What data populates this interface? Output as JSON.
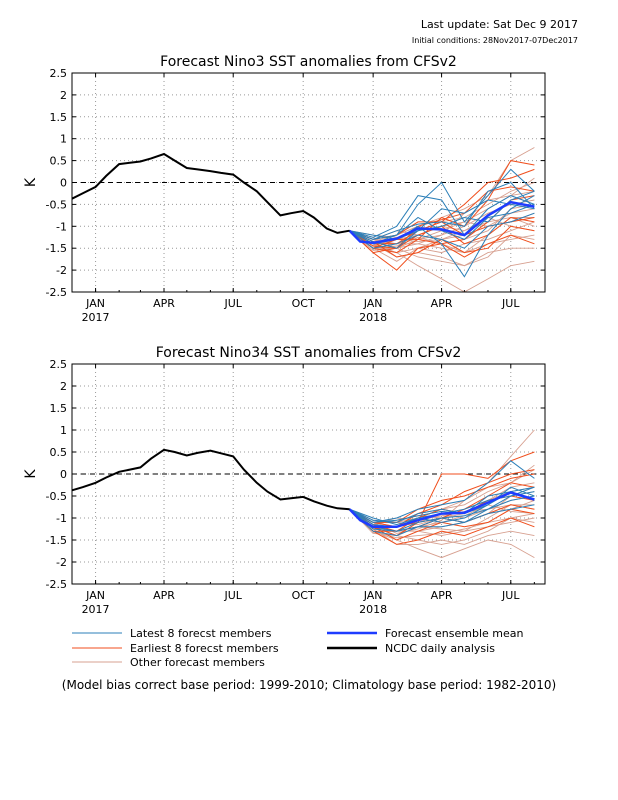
{
  "header": {
    "last_update": "Last update: Sat Dec 9 2017",
    "initial_conditions": "Initial conditions: 28Nov2017-07Dec2017"
  },
  "footnote": "(Model bias correct base period: 1999-2010; Climatology base period: 1982-2010)",
  "colors": {
    "latest": "#2b7fb8",
    "earliest": "#f04e1c",
    "other": "#d7a090",
    "mean": "#1e3cff",
    "observed": "#000000",
    "grid": "#999999"
  },
  "legend": [
    {
      "label": "Latest 8 forecst members",
      "color": "#2b7fb8",
      "width": 1
    },
    {
      "label": "Earliest 8 forecst members",
      "color": "#f04e1c",
      "width": 1
    },
    {
      "label": "Other forecast members",
      "color": "#d7a090",
      "width": 1
    },
    {
      "label": "Forecast ensemble mean",
      "color": "#1e3cff",
      "width": 2.5
    },
    {
      "label": "NCDC daily analysis",
      "color": "#000000",
      "width": 2.5
    }
  ],
  "chart_data": [
    {
      "type": "line",
      "title": "Forecast Nino3 SST anomalies from CFSv2",
      "ylabel": "K",
      "ylim": [
        -2.5,
        2.5
      ],
      "yticks": [
        "2.5",
        "2",
        "1.5",
        "1",
        "0.5",
        "0",
        "-0.5",
        "-1",
        "-1.5",
        "-2",
        "-2.5"
      ],
      "xticks": [
        {
          "month": "JAN",
          "year": "2017"
        },
        {
          "month": "APR",
          "year": ""
        },
        {
          "month": "JUL",
          "year": ""
        },
        {
          "month": "OCT",
          "year": ""
        },
        {
          "month": "JAN",
          "year": "2018"
        },
        {
          "month": "APR",
          "year": ""
        },
        {
          "month": "JUL",
          "year": ""
        }
      ],
      "grid": true,
      "observed": {
        "x": [
          "2016-12-01",
          "2016-12-15",
          "2017-01-01",
          "2017-01-15",
          "2017-02-01",
          "2017-02-15",
          "2017-03-01",
          "2017-03-15",
          "2017-04-01",
          "2017-04-15",
          "2017-05-01",
          "2017-05-15",
          "2017-06-01",
          "2017-06-15",
          "2017-07-01",
          "2017-07-15",
          "2017-08-01",
          "2017-08-15",
          "2017-09-01",
          "2017-09-15",
          "2017-10-01",
          "2017-10-15",
          "2017-11-01",
          "2017-11-15",
          "2017-12-01"
        ],
        "y": [
          -0.37,
          -0.25,
          -0.1,
          0.15,
          0.42,
          0.45,
          0.48,
          0.55,
          0.65,
          0.5,
          0.33,
          0.3,
          0.26,
          0.22,
          0.18,
          0.0,
          -0.2,
          -0.45,
          -0.75,
          -0.7,
          -0.65,
          -0.8,
          -1.05,
          -1.15,
          -1.1
        ]
      },
      "ensemble_mean": {
        "x": [
          "2017-12-01",
          "2017-12-15",
          "2018-01-01",
          "2018-02-01",
          "2018-03-01",
          "2018-04-01",
          "2018-05-01",
          "2018-06-01",
          "2018-07-01",
          "2018-08-01"
        ],
        "y": [
          -1.1,
          -1.35,
          -1.38,
          -1.28,
          -1.05,
          -1.07,
          -1.2,
          -0.75,
          -0.45,
          -0.55
        ]
      },
      "members": {
        "x": [
          "2017-12-01",
          "2018-01-01",
          "2018-02-01",
          "2018-03-01",
          "2018-04-01",
          "2018-05-01",
          "2018-06-01",
          "2018-07-01",
          "2018-08-01"
        ],
        "latest": [
          [
            -1.1,
            -1.3,
            -1.2,
            -0.5,
            0.0,
            -0.9,
            -0.3,
            0.3,
            -0.2
          ],
          [
            -1.1,
            -1.4,
            -1.3,
            -1.0,
            -1.4,
            -2.15,
            -1.2,
            -0.6,
            -0.3
          ],
          [
            -1.1,
            -1.3,
            -1.1,
            -0.95,
            -0.9,
            -1.0,
            -0.2,
            0.0,
            -0.6
          ],
          [
            -1.1,
            -1.25,
            -1.0,
            -0.3,
            -0.4,
            -1.2,
            -0.6,
            -0.3,
            -0.5
          ],
          [
            -1.1,
            -1.5,
            -1.4,
            -1.2,
            -1.3,
            -1.5,
            -1.0,
            -0.9,
            -0.7
          ],
          [
            -1.1,
            -1.2,
            -1.3,
            -1.1,
            -0.6,
            -0.7,
            -0.4,
            -0.5,
            -0.6
          ],
          [
            -1.1,
            -1.35,
            -1.5,
            -1.1,
            -1.0,
            -0.8,
            -0.9,
            -0.4,
            -0.2
          ],
          [
            -1.1,
            -1.4,
            -1.2,
            -0.8,
            -1.1,
            -1.3,
            -0.8,
            -0.7,
            -0.5
          ]
        ],
        "earliest": [
          [
            -1.1,
            -1.5,
            -1.6,
            -1.3,
            -0.8,
            -1.0,
            -0.4,
            0.5,
            0.4
          ],
          [
            -1.1,
            -1.3,
            -1.2,
            -0.9,
            -0.9,
            -0.5,
            0.0,
            0.1,
            0.3
          ],
          [
            -1.1,
            -1.6,
            -2.0,
            -1.5,
            -1.4,
            -1.7,
            -1.4,
            -1.2,
            -1.4
          ],
          [
            -1.1,
            -1.4,
            -1.4,
            -1.1,
            -0.9,
            -1.2,
            -1.0,
            -0.9,
            -0.8
          ],
          [
            -1.1,
            -1.5,
            -1.3,
            -1.3,
            -1.4,
            -1.3,
            -0.9,
            -0.4,
            -0.3
          ],
          [
            -1.1,
            -1.35,
            -1.7,
            -1.6,
            -1.3,
            -1.6,
            -1.5,
            -1.0,
            -1.1
          ],
          [
            -1.1,
            -1.45,
            -1.5,
            -1.0,
            -0.85,
            -0.7,
            -0.2,
            -0.1,
            -0.2
          ],
          [
            -1.1,
            -1.6,
            -1.5,
            -1.2,
            -1.0,
            -1.4,
            -1.2,
            -0.8,
            -0.9
          ]
        ],
        "other": [
          [
            -1.1,
            -1.4,
            -1.6,
            -1.9,
            -2.2,
            -2.5,
            -2.2,
            -1.9,
            -1.8
          ],
          [
            -1.1,
            -1.3,
            -1.2,
            -1.0,
            -0.8,
            -0.6,
            -0.3,
            0.5,
            0.8
          ],
          [
            -1.1,
            -1.5,
            -1.5,
            -1.3,
            -1.1,
            -0.9,
            -0.6,
            -0.3,
            -0.2
          ],
          [
            -1.1,
            -1.35,
            -1.4,
            -1.4,
            -1.5,
            -1.6,
            -1.4,
            -1.3,
            -1.2
          ],
          [
            -1.1,
            -1.4,
            -1.7,
            -1.6,
            -1.7,
            -1.9,
            -1.6,
            -1.5,
            -1.5
          ],
          [
            -1.1,
            -1.45,
            -1.3,
            -1.2,
            -1.0,
            -1.1,
            -0.9,
            -0.8,
            -1.0
          ],
          [
            -1.1,
            -1.2,
            -1.25,
            -1.3,
            -1.2,
            -1.0,
            -0.7,
            -0.5,
            -0.4
          ],
          [
            -1.1,
            -1.5,
            -1.8,
            -1.5,
            -1.3,
            -1.2,
            -1.0,
            -0.9,
            -0.7
          ],
          [
            -1.1,
            -1.3,
            -1.4,
            -1.1,
            -0.9,
            -0.8,
            -0.5,
            -0.2,
            0.0
          ],
          [
            -1.1,
            -1.55,
            -1.5,
            -1.7,
            -1.8,
            -1.9,
            -1.7,
            -1.2,
            -1.3
          ],
          [
            -1.1,
            -1.35,
            -1.2,
            -1.0,
            -1.1,
            -1.3,
            -1.1,
            -0.6,
            -0.5
          ],
          [
            -1.1,
            -1.4,
            -1.3,
            -1.35,
            -1.3,
            -1.1,
            -0.8,
            -1.0,
            -1.1
          ],
          [
            -1.1,
            -1.25,
            -1.5,
            -1.4,
            -1.2,
            -0.7,
            -0.4,
            -0.3,
            0.1
          ],
          [
            -1.1,
            -1.45,
            -1.6,
            -1.5,
            -1.6,
            -1.4,
            -1.3,
            -1.1,
            -0.9
          ],
          [
            -1.1,
            -1.3,
            -1.1,
            -1.2,
            -1.0,
            -0.9,
            -1.0,
            -0.7,
            -0.6
          ],
          [
            -1.1,
            -1.5,
            -1.45,
            -1.25,
            -1.4,
            -1.6,
            -1.2,
            -0.8,
            -0.8
          ]
        ]
      }
    },
    {
      "type": "line",
      "title": "Forecast Nino34 SST anomalies from CFSv2",
      "ylabel": "K",
      "ylim": [
        -2.5,
        2.5
      ],
      "yticks": [
        "2.5",
        "2",
        "1.5",
        "1",
        "0.5",
        "0",
        "-0.5",
        "-1",
        "-1.5",
        "-2",
        "-2.5"
      ],
      "xticks": [
        {
          "month": "JAN",
          "year": "2017"
        },
        {
          "month": "APR",
          "year": ""
        },
        {
          "month": "JUL",
          "year": ""
        },
        {
          "month": "OCT",
          "year": ""
        },
        {
          "month": "JAN",
          "year": "2018"
        },
        {
          "month": "APR",
          "year": ""
        },
        {
          "month": "JUL",
          "year": ""
        }
      ],
      "grid": true,
      "observed": {
        "x": [
          "2016-12-01",
          "2016-12-15",
          "2017-01-01",
          "2017-01-15",
          "2017-02-01",
          "2017-02-15",
          "2017-03-01",
          "2017-03-15",
          "2017-04-01",
          "2017-04-15",
          "2017-05-01",
          "2017-05-15",
          "2017-06-01",
          "2017-06-15",
          "2017-07-01",
          "2017-07-15",
          "2017-08-01",
          "2017-08-15",
          "2017-09-01",
          "2017-09-15",
          "2017-10-01",
          "2017-10-15",
          "2017-11-01",
          "2017-11-15",
          "2017-12-01"
        ],
        "y": [
          -0.37,
          -0.3,
          -0.2,
          -0.08,
          0.05,
          0.1,
          0.15,
          0.35,
          0.55,
          0.5,
          0.42,
          0.48,
          0.53,
          0.47,
          0.4,
          0.1,
          -0.2,
          -0.4,
          -0.58,
          -0.55,
          -0.52,
          -0.62,
          -0.72,
          -0.78,
          -0.8
        ]
      },
      "ensemble_mean": {
        "x": [
          "2017-12-01",
          "2017-12-15",
          "2018-01-01",
          "2018-02-01",
          "2018-03-01",
          "2018-04-01",
          "2018-05-01",
          "2018-06-01",
          "2018-07-01",
          "2018-08-01"
        ],
        "y": [
          -0.8,
          -1.05,
          -1.2,
          -1.2,
          -1.05,
          -0.9,
          -0.88,
          -0.65,
          -0.42,
          -0.58
        ]
      },
      "members": {
        "x": [
          "2017-12-01",
          "2018-01-01",
          "2018-02-01",
          "2018-03-01",
          "2018-04-01",
          "2018-05-01",
          "2018-06-01",
          "2018-07-01",
          "2018-08-01"
        ],
        "latest": [
          [
            -0.8,
            -1.1,
            -1.0,
            -0.8,
            -0.7,
            -0.6,
            -0.2,
            0.3,
            -0.1
          ],
          [
            -0.8,
            -1.2,
            -1.3,
            -1.2,
            -1.0,
            -1.1,
            -0.8,
            -0.5,
            -0.3
          ],
          [
            -0.8,
            -1.05,
            -1.1,
            -0.9,
            -0.8,
            -0.9,
            -0.5,
            -0.4,
            -0.6
          ],
          [
            -0.8,
            -1.15,
            -1.2,
            -1.0,
            -1.1,
            -1.0,
            -0.7,
            -0.3,
            -0.5
          ],
          [
            -0.8,
            -1.3,
            -1.4,
            -1.2,
            -1.2,
            -1.1,
            -0.9,
            -0.8,
            -0.7
          ],
          [
            -0.8,
            -1.0,
            -1.15,
            -1.0,
            -0.9,
            -0.8,
            -0.6,
            -0.5,
            -0.4
          ],
          [
            -0.8,
            -1.25,
            -1.3,
            -1.1,
            -1.0,
            -0.95,
            -0.8,
            -0.6,
            -0.5
          ],
          [
            -0.8,
            -1.1,
            -1.05,
            -0.95,
            -0.85,
            -0.9,
            -0.7,
            -0.4,
            -0.3
          ]
        ],
        "earliest": [
          [
            -0.8,
            -1.2,
            -1.4,
            -1.1,
            0.0,
            0.0,
            -0.1,
            0.3,
            0.5
          ],
          [
            -0.8,
            -1.1,
            -1.2,
            -0.9,
            -0.7,
            -0.4,
            -0.2,
            0.0,
            0.1
          ],
          [
            -0.8,
            -1.3,
            -1.6,
            -1.5,
            -1.3,
            -1.4,
            -1.2,
            -1.0,
            -1.2
          ],
          [
            -0.8,
            -1.15,
            -1.3,
            -1.0,
            -0.8,
            -0.9,
            -0.6,
            -0.5,
            -0.6
          ],
          [
            -0.8,
            -1.25,
            -1.2,
            -1.1,
            -1.0,
            -0.8,
            -0.5,
            -0.2,
            -0.3
          ],
          [
            -0.8,
            -1.2,
            -1.5,
            -1.3,
            -1.1,
            -1.2,
            -1.1,
            -0.8,
            -0.9
          ],
          [
            -0.8,
            -1.1,
            -1.1,
            -0.8,
            -0.6,
            -0.5,
            -0.3,
            -0.1,
            0.0
          ],
          [
            -0.8,
            -1.3,
            -1.3,
            -1.2,
            -1.0,
            -1.1,
            -0.9,
            -0.7,
            -0.8
          ]
        ],
        "other": [
          [
            -0.8,
            -1.2,
            -1.5,
            -1.7,
            -1.9,
            -1.7,
            -1.5,
            -1.6,
            -1.9
          ],
          [
            -0.8,
            -1.1,
            -1.1,
            -1.0,
            -0.8,
            -0.6,
            -0.2,
            0.4,
            1.0
          ],
          [
            -0.8,
            -1.2,
            -1.4,
            -1.2,
            -1.0,
            -0.9,
            -0.6,
            -0.3,
            -0.2
          ],
          [
            -0.8,
            -1.15,
            -1.3,
            -1.3,
            -1.4,
            -1.3,
            -1.2,
            -1.1,
            -1.0
          ],
          [
            -0.8,
            -1.25,
            -1.6,
            -1.6,
            -1.5,
            -1.6,
            -1.4,
            -1.3,
            -1.4
          ],
          [
            -0.8,
            -1.2,
            -1.2,
            -1.1,
            -0.9,
            -1.0,
            -0.8,
            -0.7,
            -0.8
          ],
          [
            -0.8,
            -1.05,
            -1.1,
            -1.15,
            -1.0,
            -0.8,
            -0.6,
            -0.4,
            -0.3
          ],
          [
            -0.8,
            -1.3,
            -1.5,
            -1.3,
            -1.2,
            -1.1,
            -0.9,
            -0.8,
            -0.6
          ],
          [
            -0.8,
            -1.1,
            -1.2,
            -0.9,
            -0.8,
            -0.7,
            -0.4,
            -0.2,
            0.1
          ],
          [
            -0.8,
            -1.35,
            -1.4,
            -1.5,
            -1.6,
            -1.5,
            -1.3,
            -1.0,
            -1.1
          ],
          [
            -0.8,
            -1.15,
            -1.05,
            -0.95,
            -1.0,
            -1.1,
            -0.9,
            -0.5,
            -0.4
          ],
          [
            -0.8,
            -1.2,
            -1.3,
            -1.2,
            -1.1,
            -0.95,
            -0.7,
            -0.85,
            -0.9
          ],
          [
            -0.8,
            -1.1,
            -1.35,
            -1.25,
            -1.05,
            -0.6,
            -0.3,
            -0.2,
            0.2
          ],
          [
            -0.8,
            -1.3,
            -1.45,
            -1.4,
            -1.35,
            -1.25,
            -1.1,
            -1.0,
            -0.9
          ],
          [
            -0.8,
            -1.15,
            -1.0,
            -1.05,
            -0.95,
            -0.85,
            -0.8,
            -0.6,
            -0.5
          ],
          [
            -0.8,
            -1.25,
            -1.3,
            -1.2,
            -1.25,
            -1.3,
            -1.0,
            -0.7,
            -0.7
          ]
        ]
      }
    }
  ]
}
